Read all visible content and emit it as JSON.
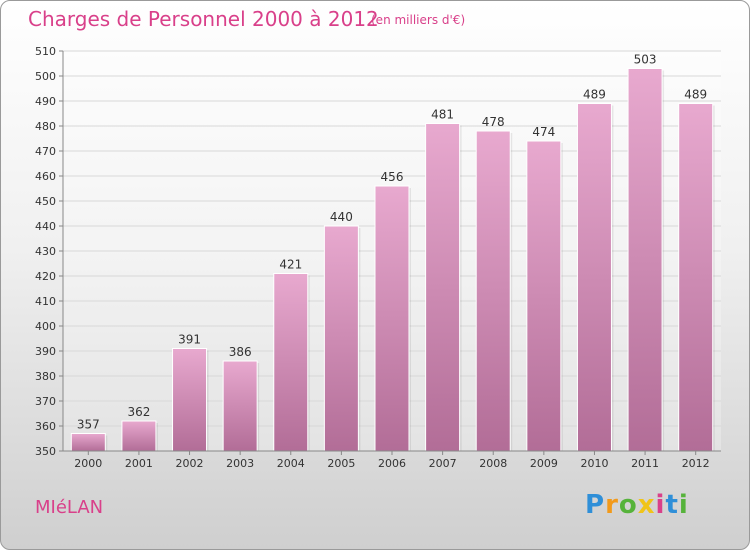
{
  "title": "Charges de Personnel 2000 à 2012",
  "subtitle": "(en milliers d'€)",
  "commune": "MIéLAN",
  "logo": {
    "letters": [
      "P",
      "r",
      "o",
      "x",
      "i",
      "t",
      "i"
    ],
    "colors": [
      "#2f8fd8",
      "#f29a1a",
      "#56b33b",
      "#f0c419",
      "#d9408a",
      "#2f8fd8",
      "#56b33b"
    ]
  },
  "colors": {
    "accent": "#d9408a",
    "bar_top": "#e8a9cf",
    "bar_bottom": "#b26d97"
  },
  "chart_data": {
    "type": "bar",
    "title": "Charges de Personnel 2000 à 2012",
    "subtitle": "(en milliers d'€)",
    "categories": [
      "2000",
      "2001",
      "2002",
      "2003",
      "2004",
      "2005",
      "2006",
      "2007",
      "2008",
      "2009",
      "2010",
      "2011",
      "2012"
    ],
    "values": [
      357,
      362,
      391,
      386,
      421,
      440,
      456,
      481,
      478,
      474,
      489,
      503,
      489
    ],
    "ylim": [
      350,
      510
    ],
    "yticks": [
      350,
      360,
      370,
      380,
      390,
      400,
      410,
      420,
      430,
      440,
      450,
      460,
      470,
      480,
      490,
      500,
      510
    ],
    "grid": true
  }
}
